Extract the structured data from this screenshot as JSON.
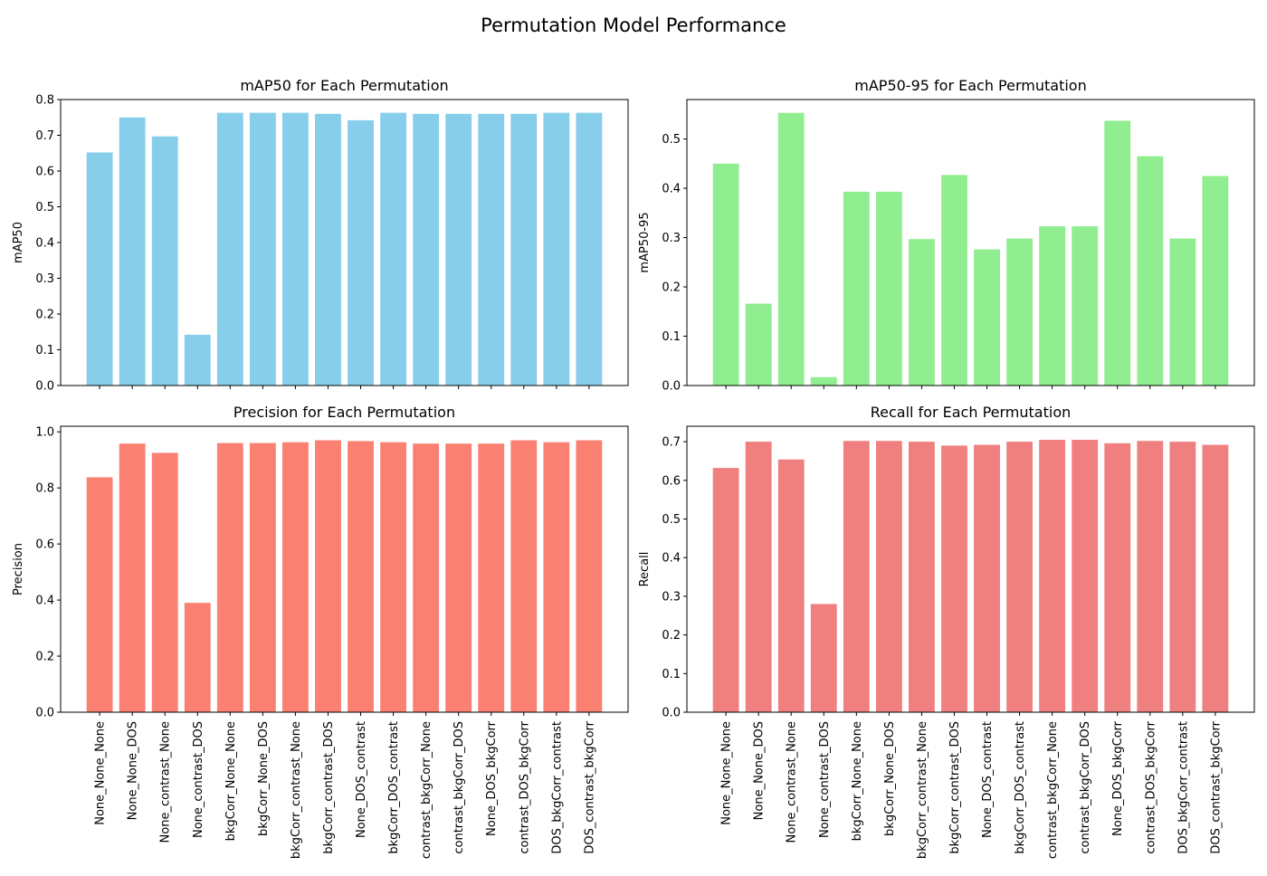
{
  "figure": {
    "title": "Permutation Model Performance"
  },
  "chart_data": [
    {
      "type": "bar",
      "title": "mAP50 for Each Permutation",
      "xlabel": "",
      "ylabel": "mAP50",
      "color": "#87ceeb",
      "ylim": [
        0,
        0.8
      ],
      "yticks": [
        0.0,
        0.1,
        0.2,
        0.3,
        0.4,
        0.5,
        0.6,
        0.7,
        0.8
      ],
      "ytick_decimals": 1,
      "categories": [
        "None_None_None",
        "None_None_DOS",
        "None_contrast_None",
        "None_contrast_DOS",
        "bkgCorr_None_None",
        "bkgCorr_None_DOS",
        "bkgCorr_contrast_None",
        "bkgCorr_contrast_DOS",
        "None_DOS_contrast",
        "bkgCorr_DOS_contrast",
        "contrast_bkgCorr_None",
        "contrast_bkgCorr_DOS",
        "None_DOS_bkgCorr",
        "contrast_DOS_bkgCorr",
        "DOS_bkgCorr_contrast",
        "DOS_contrast_bkgCorr"
      ],
      "values": [
        0.652,
        0.75,
        0.697,
        0.142,
        0.763,
        0.763,
        0.763,
        0.76,
        0.742,
        0.763,
        0.76,
        0.76,
        0.76,
        0.76,
        0.763,
        0.763
      ],
      "show_xtick_labels": false
    },
    {
      "type": "bar",
      "title": "mAP50-95 for Each Permutation",
      "xlabel": "",
      "ylabel": "mAP50-95",
      "color": "#90ee90",
      "ylim": [
        0,
        0.58
      ],
      "yticks": [
        0.0,
        0.1,
        0.2,
        0.3,
        0.4,
        0.5
      ],
      "ytick_decimals": 1,
      "categories": [
        "None_None_None",
        "None_None_DOS",
        "None_contrast_None",
        "None_contrast_DOS",
        "bkgCorr_None_None",
        "bkgCorr_None_DOS",
        "bkgCorr_contrast_None",
        "bkgCorr_contrast_DOS",
        "None_DOS_contrast",
        "bkgCorr_DOS_contrast",
        "contrast_bkgCorr_None",
        "contrast_bkgCorr_DOS",
        "None_DOS_bkgCorr",
        "contrast_DOS_bkgCorr",
        "DOS_bkgCorr_contrast",
        "DOS_contrast_bkgCorr"
      ],
      "values": [
        0.45,
        0.166,
        0.553,
        0.017,
        0.393,
        0.393,
        0.297,
        0.427,
        0.276,
        0.298,
        0.323,
        0.323,
        0.537,
        0.465,
        0.298,
        0.425
      ],
      "show_xtick_labels": false
    },
    {
      "type": "bar",
      "title": "Precision for Each Permutation",
      "xlabel": "",
      "ylabel": "Precision",
      "color": "#fa8072",
      "ylim": [
        0,
        1.02
      ],
      "yticks": [
        0.0,
        0.2,
        0.4,
        0.6,
        0.8,
        1.0
      ],
      "ytick_decimals": 1,
      "categories": [
        "None_None_None",
        "None_None_DOS",
        "None_contrast_None",
        "None_contrast_DOS",
        "bkgCorr_None_None",
        "bkgCorr_None_DOS",
        "bkgCorr_contrast_None",
        "bkgCorr_contrast_DOS",
        "None_DOS_contrast",
        "bkgCorr_DOS_contrast",
        "contrast_bkgCorr_None",
        "contrast_bkgCorr_DOS",
        "None_DOS_bkgCorr",
        "contrast_DOS_bkgCorr",
        "DOS_bkgCorr_contrast",
        "DOS_contrast_bkgCorr"
      ],
      "values": [
        0.838,
        0.958,
        0.925,
        0.39,
        0.96,
        0.96,
        0.963,
        0.97,
        0.967,
        0.963,
        0.958,
        0.958,
        0.958,
        0.97,
        0.963,
        0.97
      ],
      "show_xtick_labels": true
    },
    {
      "type": "bar",
      "title": "Recall for Each Permutation",
      "xlabel": "",
      "ylabel": "Recall",
      "color": "#f08080",
      "ylim": [
        0,
        0.74
      ],
      "yticks": [
        0.0,
        0.1,
        0.2,
        0.3,
        0.4,
        0.5,
        0.6,
        0.7
      ],
      "ytick_decimals": 1,
      "categories": [
        "None_None_None",
        "None_None_DOS",
        "None_contrast_None",
        "None_contrast_DOS",
        "bkgCorr_None_None",
        "bkgCorr_None_DOS",
        "bkgCorr_contrast_None",
        "bkgCorr_contrast_DOS",
        "None_DOS_contrast",
        "bkgCorr_DOS_contrast",
        "contrast_bkgCorr_None",
        "contrast_bkgCorr_DOS",
        "None_DOS_bkgCorr",
        "contrast_DOS_bkgCorr",
        "DOS_bkgCorr_contrast",
        "DOS_contrast_bkgCorr"
      ],
      "values": [
        0.632,
        0.7,
        0.654,
        0.28,
        0.702,
        0.702,
        0.7,
        0.69,
        0.692,
        0.7,
        0.705,
        0.705,
        0.696,
        0.702,
        0.7,
        0.692
      ],
      "show_xtick_labels": true
    }
  ]
}
